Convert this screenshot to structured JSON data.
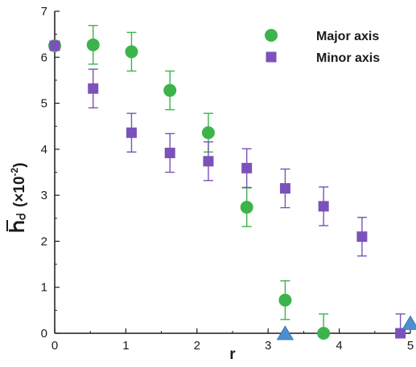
{
  "chart_data": {
    "type": "scatter",
    "xlabel": "r",
    "ylabel": "(×10",
    "ylabel_exp": "-2",
    "ylabel_close": ")",
    "xlim": [
      0,
      5
    ],
    "ylim": [
      0,
      7
    ],
    "x_ticks": [
      0,
      1,
      2,
      3,
      4,
      5
    ],
    "y_ticks": [
      0,
      1,
      2,
      3,
      4,
      5,
      6,
      7
    ],
    "legend_position": "top-right",
    "grid": false,
    "series": [
      {
        "name": "Major axis",
        "marker": "circle",
        "color": "#3cb44b",
        "points": [
          {
            "x": 0.0,
            "y": 6.25,
            "err": null
          },
          {
            "x": 0.54,
            "y": 6.27,
            "err": 0.42
          },
          {
            "x": 1.08,
            "y": 6.12,
            "err": 0.42
          },
          {
            "x": 1.62,
            "y": 5.28,
            "err": 0.42
          },
          {
            "x": 2.16,
            "y": 4.36,
            "err": 0.42
          },
          {
            "x": 2.7,
            "y": 2.74,
            "err": 0.42
          },
          {
            "x": 3.24,
            "y": 0.72,
            "err": 0.42
          },
          {
            "x": 3.78,
            "y": 0.0,
            "err": 0.42
          }
        ]
      },
      {
        "name": "Minor axis",
        "marker": "square",
        "color": "#7b52b9",
        "points": [
          {
            "x": 0.0,
            "y": 6.25,
            "err": null
          },
          {
            "x": 0.54,
            "y": 5.32,
            "err": 0.42
          },
          {
            "x": 1.08,
            "y": 4.36,
            "err": 0.42
          },
          {
            "x": 1.62,
            "y": 3.92,
            "err": 0.42
          },
          {
            "x": 2.16,
            "y": 3.74,
            "err": 0.42
          },
          {
            "x": 2.7,
            "y": 3.59,
            "err": 0.42
          },
          {
            "x": 3.24,
            "y": 3.15,
            "err": 0.42
          },
          {
            "x": 3.78,
            "y": 2.76,
            "err": 0.42
          },
          {
            "x": 4.32,
            "y": 2.1,
            "err": 0.42
          },
          {
            "x": 4.86,
            "y": 0.0,
            "err": 0.42
          }
        ]
      },
      {
        "name": "",
        "marker": "triangle",
        "color": "#4a8fd0",
        "points": [
          {
            "x": 3.24,
            "y": 0.0,
            "err": null
          },
          {
            "x": 5.0,
            "y": 0.22,
            "err": null
          }
        ]
      }
    ]
  }
}
